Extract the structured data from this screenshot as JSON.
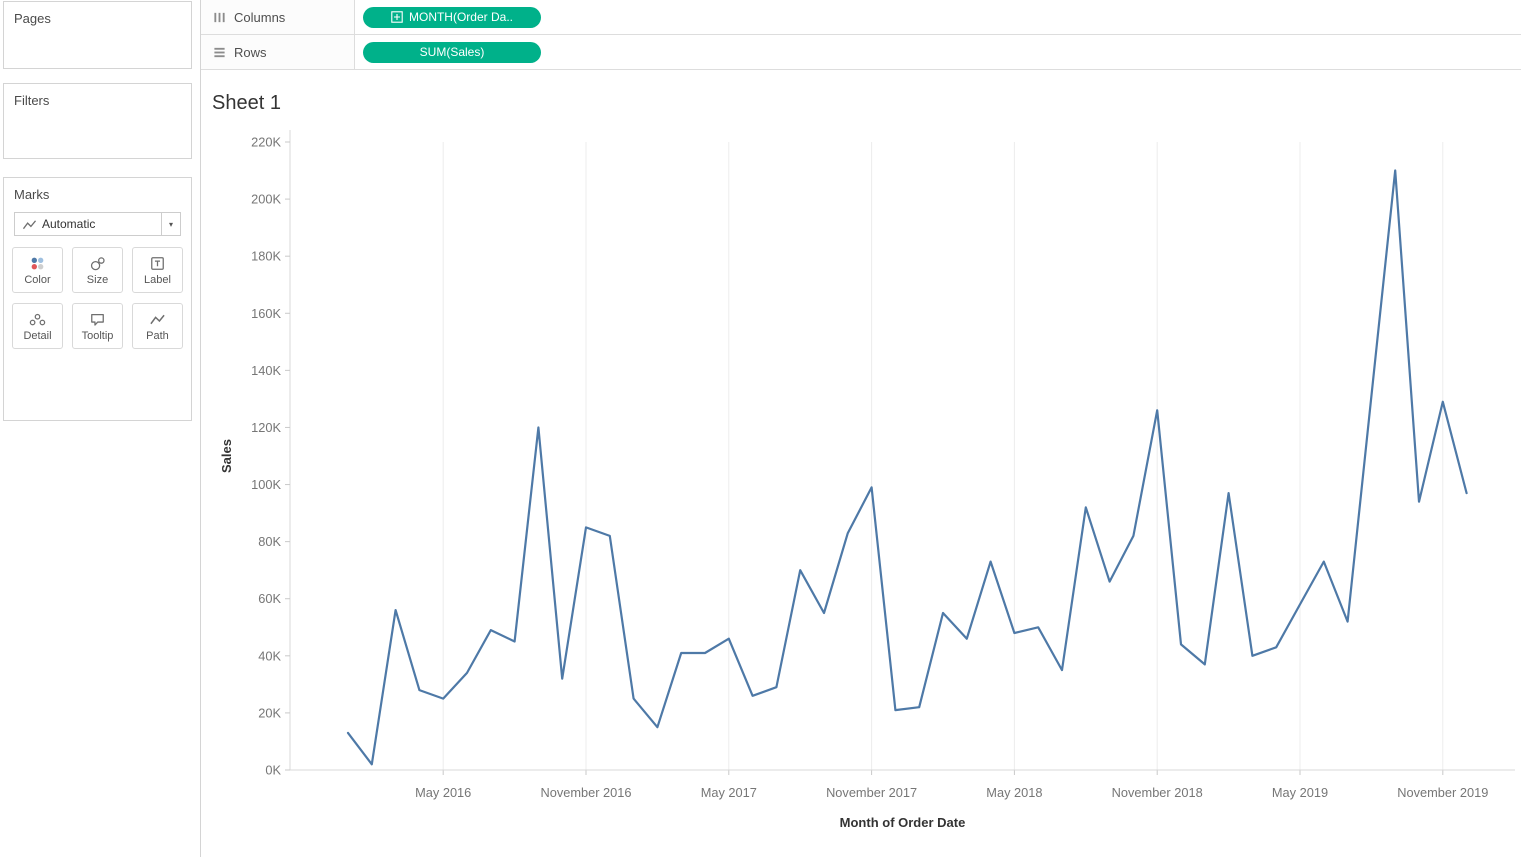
{
  "colors": {
    "pill_green": "#00b18a",
    "line_blue": "#4e79a7"
  },
  "sidebar": {
    "pages_label": "Pages",
    "filters_label": "Filters",
    "marks_label": "Marks",
    "mark_type": "Automatic",
    "mark_buttons": [
      {
        "label": "Color",
        "icon": "color-dots-icon"
      },
      {
        "label": "Size",
        "icon": "size-circles-icon"
      },
      {
        "label": "Label",
        "icon": "label-t-icon"
      },
      {
        "label": "Detail",
        "icon": "detail-dots-icon"
      },
      {
        "label": "Tooltip",
        "icon": "tooltip-bubble-icon"
      },
      {
        "label": "Path",
        "icon": "path-zigzag-icon"
      }
    ]
  },
  "shelves": {
    "columns_label": "Columns",
    "rows_label": "Rows",
    "columns_pill": "MONTH(Order Da..",
    "rows_pill": "SUM(Sales)"
  },
  "sheet": {
    "title": "Sheet 1"
  },
  "chart_data": {
    "type": "line",
    "title": "Sheet 1",
    "xlabel": "Month of Order Date",
    "ylabel": "Sales",
    "legend": "none",
    "grid": "faint vertical gridlines at x ticks",
    "line_color": "#4e79a7",
    "ylim_k": [
      0,
      220
    ],
    "y_tick_step_k": 20,
    "y_tick_labels": [
      "0K",
      "20K",
      "40K",
      "60K",
      "80K",
      "100K",
      "120K",
      "140K",
      "160K",
      "180K",
      "200K",
      "220K"
    ],
    "x_tick_labels": [
      "May 2016",
      "November 2016",
      "May 2017",
      "November 2017",
      "May 2018",
      "November 2018",
      "May 2019",
      "November 2019"
    ],
    "x_tick_indices": [
      4,
      10,
      16,
      22,
      28,
      34,
      40,
      46
    ],
    "x_months": [
      "Jan 2016",
      "Feb 2016",
      "Mar 2016",
      "Apr 2016",
      "May 2016",
      "Jun 2016",
      "Jul 2016",
      "Aug 2016",
      "Sep 2016",
      "Oct 2016",
      "Nov 2016",
      "Dec 2016",
      "Jan 2017",
      "Feb 2017",
      "Mar 2017",
      "Apr 2017",
      "May 2017",
      "Jun 2017",
      "Jul 2017",
      "Aug 2017",
      "Sep 2017",
      "Oct 2017",
      "Nov 2017",
      "Dec 2017",
      "Jan 2018",
      "Feb 2018",
      "Mar 2018",
      "Apr 2018",
      "May 2018",
      "Jun 2018",
      "Jul 2018",
      "Aug 2018",
      "Sep 2018",
      "Oct 2018",
      "Nov 2018",
      "Dec 2018",
      "Jan 2019",
      "Feb 2019",
      "Mar 2019",
      "Apr 2019",
      "May 2019",
      "Jun 2019",
      "Jul 2019",
      "Aug 2019",
      "Sep 2019",
      "Oct 2019",
      "Nov 2019",
      "Dec 2019"
    ],
    "values_k": [
      13,
      2,
      56,
      28,
      25,
      34,
      49,
      45,
      120,
      32,
      85,
      82,
      25,
      15,
      41,
      41,
      46,
      26,
      29,
      70,
      55,
      83,
      99,
      21,
      22,
      55,
      46,
      73,
      48,
      50,
      35,
      92,
      66,
      82,
      126,
      44,
      37,
      97,
      40,
      43,
      58,
      73,
      52,
      131,
      210,
      94,
      129,
      97
    ],
    "values_unit": "thousands (K) of Sales"
  }
}
